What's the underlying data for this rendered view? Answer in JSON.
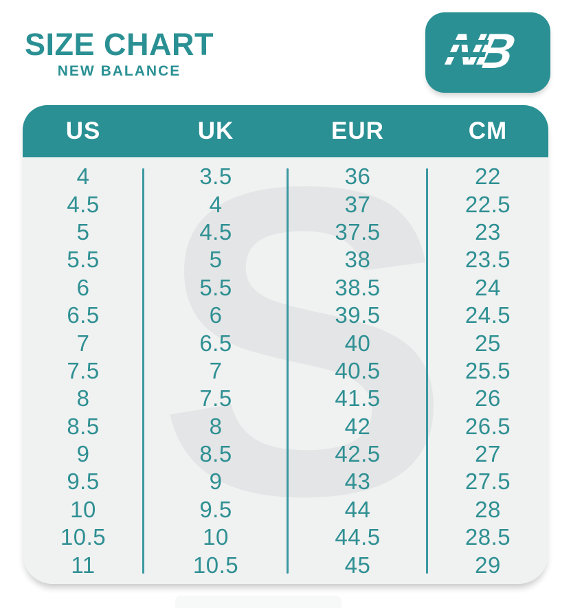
{
  "header": {
    "title": "SIZE CHART",
    "subtitle": "NEW BALANCE"
  },
  "logo": {
    "mark_n": "N",
    "mark_b": "B"
  },
  "colors": {
    "teal": "#2a9093",
    "header_text": "#ffffff",
    "card_bg": "#f0f1f1",
    "watermark": "#e4e5e6",
    "cell_text": "#2f9093",
    "divider": "#3b98a2"
  },
  "chart_data": {
    "type": "table",
    "title": "SIZE CHART",
    "subtitle": "NEW BALANCE",
    "columns": [
      "US",
      "UK",
      "EUR",
      "CM"
    ],
    "rows": [
      [
        "4",
        "3.5",
        "36",
        "22"
      ],
      [
        "4.5",
        "4",
        "37",
        "22.5"
      ],
      [
        "5",
        "4.5",
        "37.5",
        "23"
      ],
      [
        "5.5",
        "5",
        "38",
        "23.5"
      ],
      [
        "6",
        "5.5",
        "38.5",
        "24"
      ],
      [
        "6.5",
        "6",
        "39.5",
        "24.5"
      ],
      [
        "7",
        "6.5",
        "40",
        "25"
      ],
      [
        "7.5",
        "7",
        "40.5",
        "25.5"
      ],
      [
        "8",
        "7.5",
        "41.5",
        "26"
      ],
      [
        "8.5",
        "8",
        "42",
        "26.5"
      ],
      [
        "9",
        "8.5",
        "42.5",
        "27"
      ],
      [
        "9.5",
        "9",
        "43",
        "27.5"
      ],
      [
        "10",
        "9.5",
        "44",
        "28"
      ],
      [
        "10.5",
        "10",
        "44.5",
        "28.5"
      ],
      [
        "11",
        "10.5",
        "45",
        "29"
      ]
    ],
    "watermark_glyph": "S"
  }
}
